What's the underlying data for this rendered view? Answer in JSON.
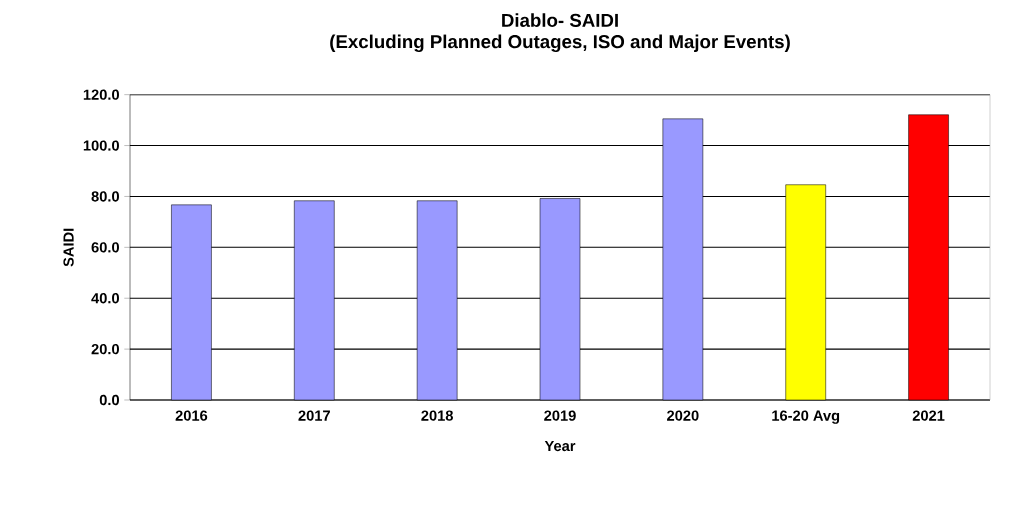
{
  "chart_data": {
    "type": "bar",
    "title": "Diablo- SAIDI",
    "subtitle": "(Excluding Planned Outages, ISO and Major Events)",
    "xlabel": "Year",
    "ylabel": "SAIDI",
    "categories": [
      "2016",
      "2017",
      "2018",
      "2019",
      "2020",
      "16-20 Avg",
      "2021"
    ],
    "values": [
      76.7,
      78.3,
      78.3,
      79.2,
      110.5,
      84.6,
      112.1
    ],
    "colors": [
      "#9999ff",
      "#9999ff",
      "#9999ff",
      "#9999ff",
      "#9999ff",
      "#ffff00",
      "#ff0000"
    ],
    "ylim": [
      0,
      120
    ],
    "yticks": [
      {
        "value": 0,
        "label": "0.0"
      },
      {
        "value": 20,
        "label": "20.0"
      },
      {
        "value": 40,
        "label": "40.0"
      },
      {
        "value": 60,
        "label": "60.0"
      },
      {
        "value": 80,
        "label": "80.0"
      },
      {
        "value": 100,
        "label": "100.0"
      },
      {
        "value": 120,
        "label": "120.0"
      }
    ],
    "grid": "y"
  }
}
